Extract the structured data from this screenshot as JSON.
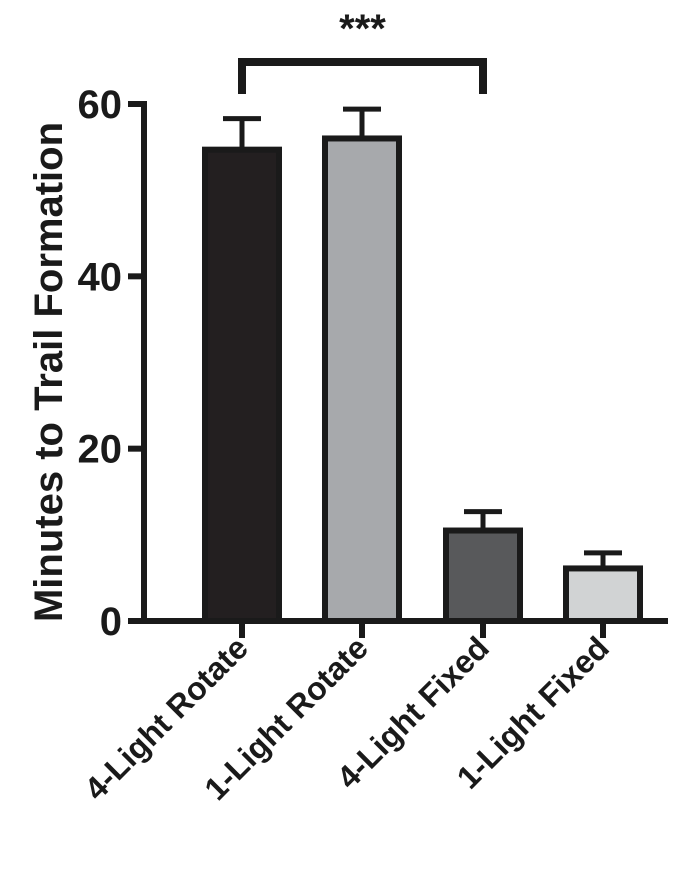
{
  "chart_data": {
    "type": "bar",
    "ylabel": "Minutes to Trail Formation",
    "xlabel": "",
    "ylim": [
      0,
      60
    ],
    "yticks": [
      0,
      20,
      40,
      60
    ],
    "categories": [
      "4-Light Rotate",
      "1-Light Rotate",
      "4-Light Fixed",
      "1-Light Fixed"
    ],
    "values": [
      54.7,
      56.0,
      10.5,
      6.1
    ],
    "error_upper": [
      3.6,
      3.4,
      2.2,
      1.8
    ],
    "bar_colors": [
      "#231f20",
      "#a7a9ac",
      "#58595b",
      "#d1d3d4"
    ],
    "significance": {
      "from": "4-Light Rotate",
      "to": "4-Light Fixed",
      "label": "***"
    },
    "grid": false,
    "legend": "none"
  }
}
